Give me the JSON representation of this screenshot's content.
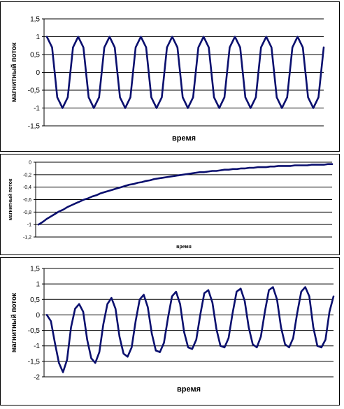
{
  "chart_data": [
    {
      "type": "line",
      "title": "",
      "xlabel": "время",
      "ylabel": "магнитный поток",
      "ylim": [
        -1.5,
        1.5
      ],
      "yticks": [
        "1,5",
        "1",
        "0,5",
        "0",
        "-0,5",
        "-1",
        "-1,5"
      ],
      "grid": true,
      "legend": "none",
      "color": "#0a0f6e",
      "series": [
        {
          "values": [
            1,
            0.7,
            -0.7,
            -1,
            -0.7,
            0.7,
            1,
            0.7,
            -0.7,
            -1,
            -0.7,
            0.7,
            1,
            0.7,
            -0.7,
            -1,
            -0.7,
            0.7,
            1,
            0.7,
            -0.7,
            -1,
            -0.7,
            0.7,
            1,
            0.7,
            -0.7,
            -1,
            -0.7,
            0.7,
            1,
            0.7,
            -0.7,
            -1,
            -0.7,
            0.7,
            1,
            0.7,
            -0.7,
            -1,
            -0.7,
            0.7,
            1,
            0.7,
            -0.7,
            -1,
            -0.7,
            0.7,
            1,
            0.7,
            -0.7,
            -1,
            -0.7,
            0.7
          ]
        }
      ]
    },
    {
      "type": "line",
      "title": "",
      "xlabel": "время",
      "ylabel": "магнитный поток",
      "ylim": [
        -1.2,
        0
      ],
      "yticks": [
        "0",
        "-0,2",
        "-0,4",
        "-0,6",
        "-0,8",
        "-1",
        "-1,2"
      ],
      "grid": true,
      "legend": "none",
      "color": "#0a0f6e",
      "series": [
        {
          "values": [
            -1,
            -0.96,
            -0.91,
            -0.87,
            -0.83,
            -0.79,
            -0.76,
            -0.72,
            -0.69,
            -0.66,
            -0.63,
            -0.6,
            -0.58,
            -0.55,
            -0.53,
            -0.5,
            -0.48,
            -0.46,
            -0.44,
            -0.42,
            -0.4,
            -0.38,
            -0.36,
            -0.35,
            -0.33,
            -0.32,
            -0.3,
            -0.29,
            -0.27,
            -0.26,
            -0.25,
            -0.24,
            -0.23,
            -0.22,
            -0.21,
            -0.2,
            -0.19,
            -0.18,
            -0.17,
            -0.16,
            -0.16,
            -0.15,
            -0.14,
            -0.14,
            -0.13,
            -0.12,
            -0.12,
            -0.11,
            -0.11,
            -0.1,
            -0.1,
            -0.09,
            -0.09,
            -0.08,
            -0.08,
            -0.08,
            -0.07,
            -0.07,
            -0.06,
            -0.06,
            -0.06,
            -0.06,
            -0.05,
            -0.05,
            -0.05,
            -0.05,
            -0.04,
            -0.04,
            -0.04,
            -0.04,
            -0.03,
            -0.03
          ]
        }
      ]
    },
    {
      "type": "line",
      "title": "",
      "xlabel": "время",
      "ylabel": "магнитный поток",
      "ylim": [
        -2,
        1.5
      ],
      "yticks": [
        "1,5",
        "1",
        "0,5",
        "0",
        "-0,5",
        "-1",
        "-1,5",
        "-2"
      ],
      "grid": true,
      "legend": "none",
      "color": "#0a0f6e",
      "series": [
        {
          "values": [
            0,
            -0.2,
            -0.9,
            -1.55,
            -1.85,
            -1.45,
            -0.4,
            0.2,
            0.35,
            0.1,
            -0.8,
            -1.4,
            -1.55,
            -1.2,
            -0.3,
            0.35,
            0.55,
            0.2,
            -0.7,
            -1.25,
            -1.35,
            -1.05,
            -0.2,
            0.5,
            0.65,
            0.25,
            -0.6,
            -1.15,
            -1.2,
            -0.9,
            -0.1,
            0.6,
            0.75,
            0.35,
            -0.55,
            -1.05,
            -1.1,
            -0.8,
            0,
            0.7,
            0.8,
            0.4,
            -0.45,
            -1,
            -1.05,
            -0.75,
            0.05,
            0.75,
            0.85,
            0.45,
            -0.4,
            -0.95,
            -1.05,
            -0.7,
            0.1,
            0.8,
            0.9,
            0.5,
            -0.4,
            -0.95,
            -1.05,
            -0.75,
            0.05,
            0.75,
            0.9,
            0.6,
            -0.4,
            -1,
            -1.05,
            -0.8,
            0.1,
            0.6
          ]
        }
      ]
    }
  ]
}
